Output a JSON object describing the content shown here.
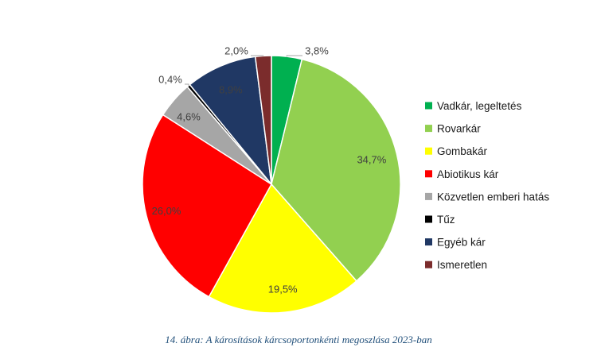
{
  "chart_data": {
    "type": "pie",
    "categories": [
      "Vadkár, legeltetés",
      "Rovarkár",
      "Gombakár",
      "Abiotikus kár",
      "Közvetlen emberi hatás",
      "Tűz",
      "Egyéb kár",
      "Ismeretlen"
    ],
    "values": [
      3.8,
      34.7,
      19.5,
      26.0,
      4.6,
      0.4,
      8.9,
      2.0
    ],
    "value_labels": [
      "3,8%",
      "34,7%",
      "19,5%",
      "26,0%",
      "4,6%",
      "0,4%",
      "8,9%",
      "2,0%"
    ],
    "colors": [
      "#00b050",
      "#92d050",
      "#ffff00",
      "#ff0000",
      "#a6a6a6",
      "#000000",
      "#203864",
      "#7b2c2c"
    ],
    "legend_position": "right",
    "start": "top, clockwise"
  },
  "caption": "14. ábra: A károsítások kárcsoportonkénti megoszlása 2023-ban"
}
